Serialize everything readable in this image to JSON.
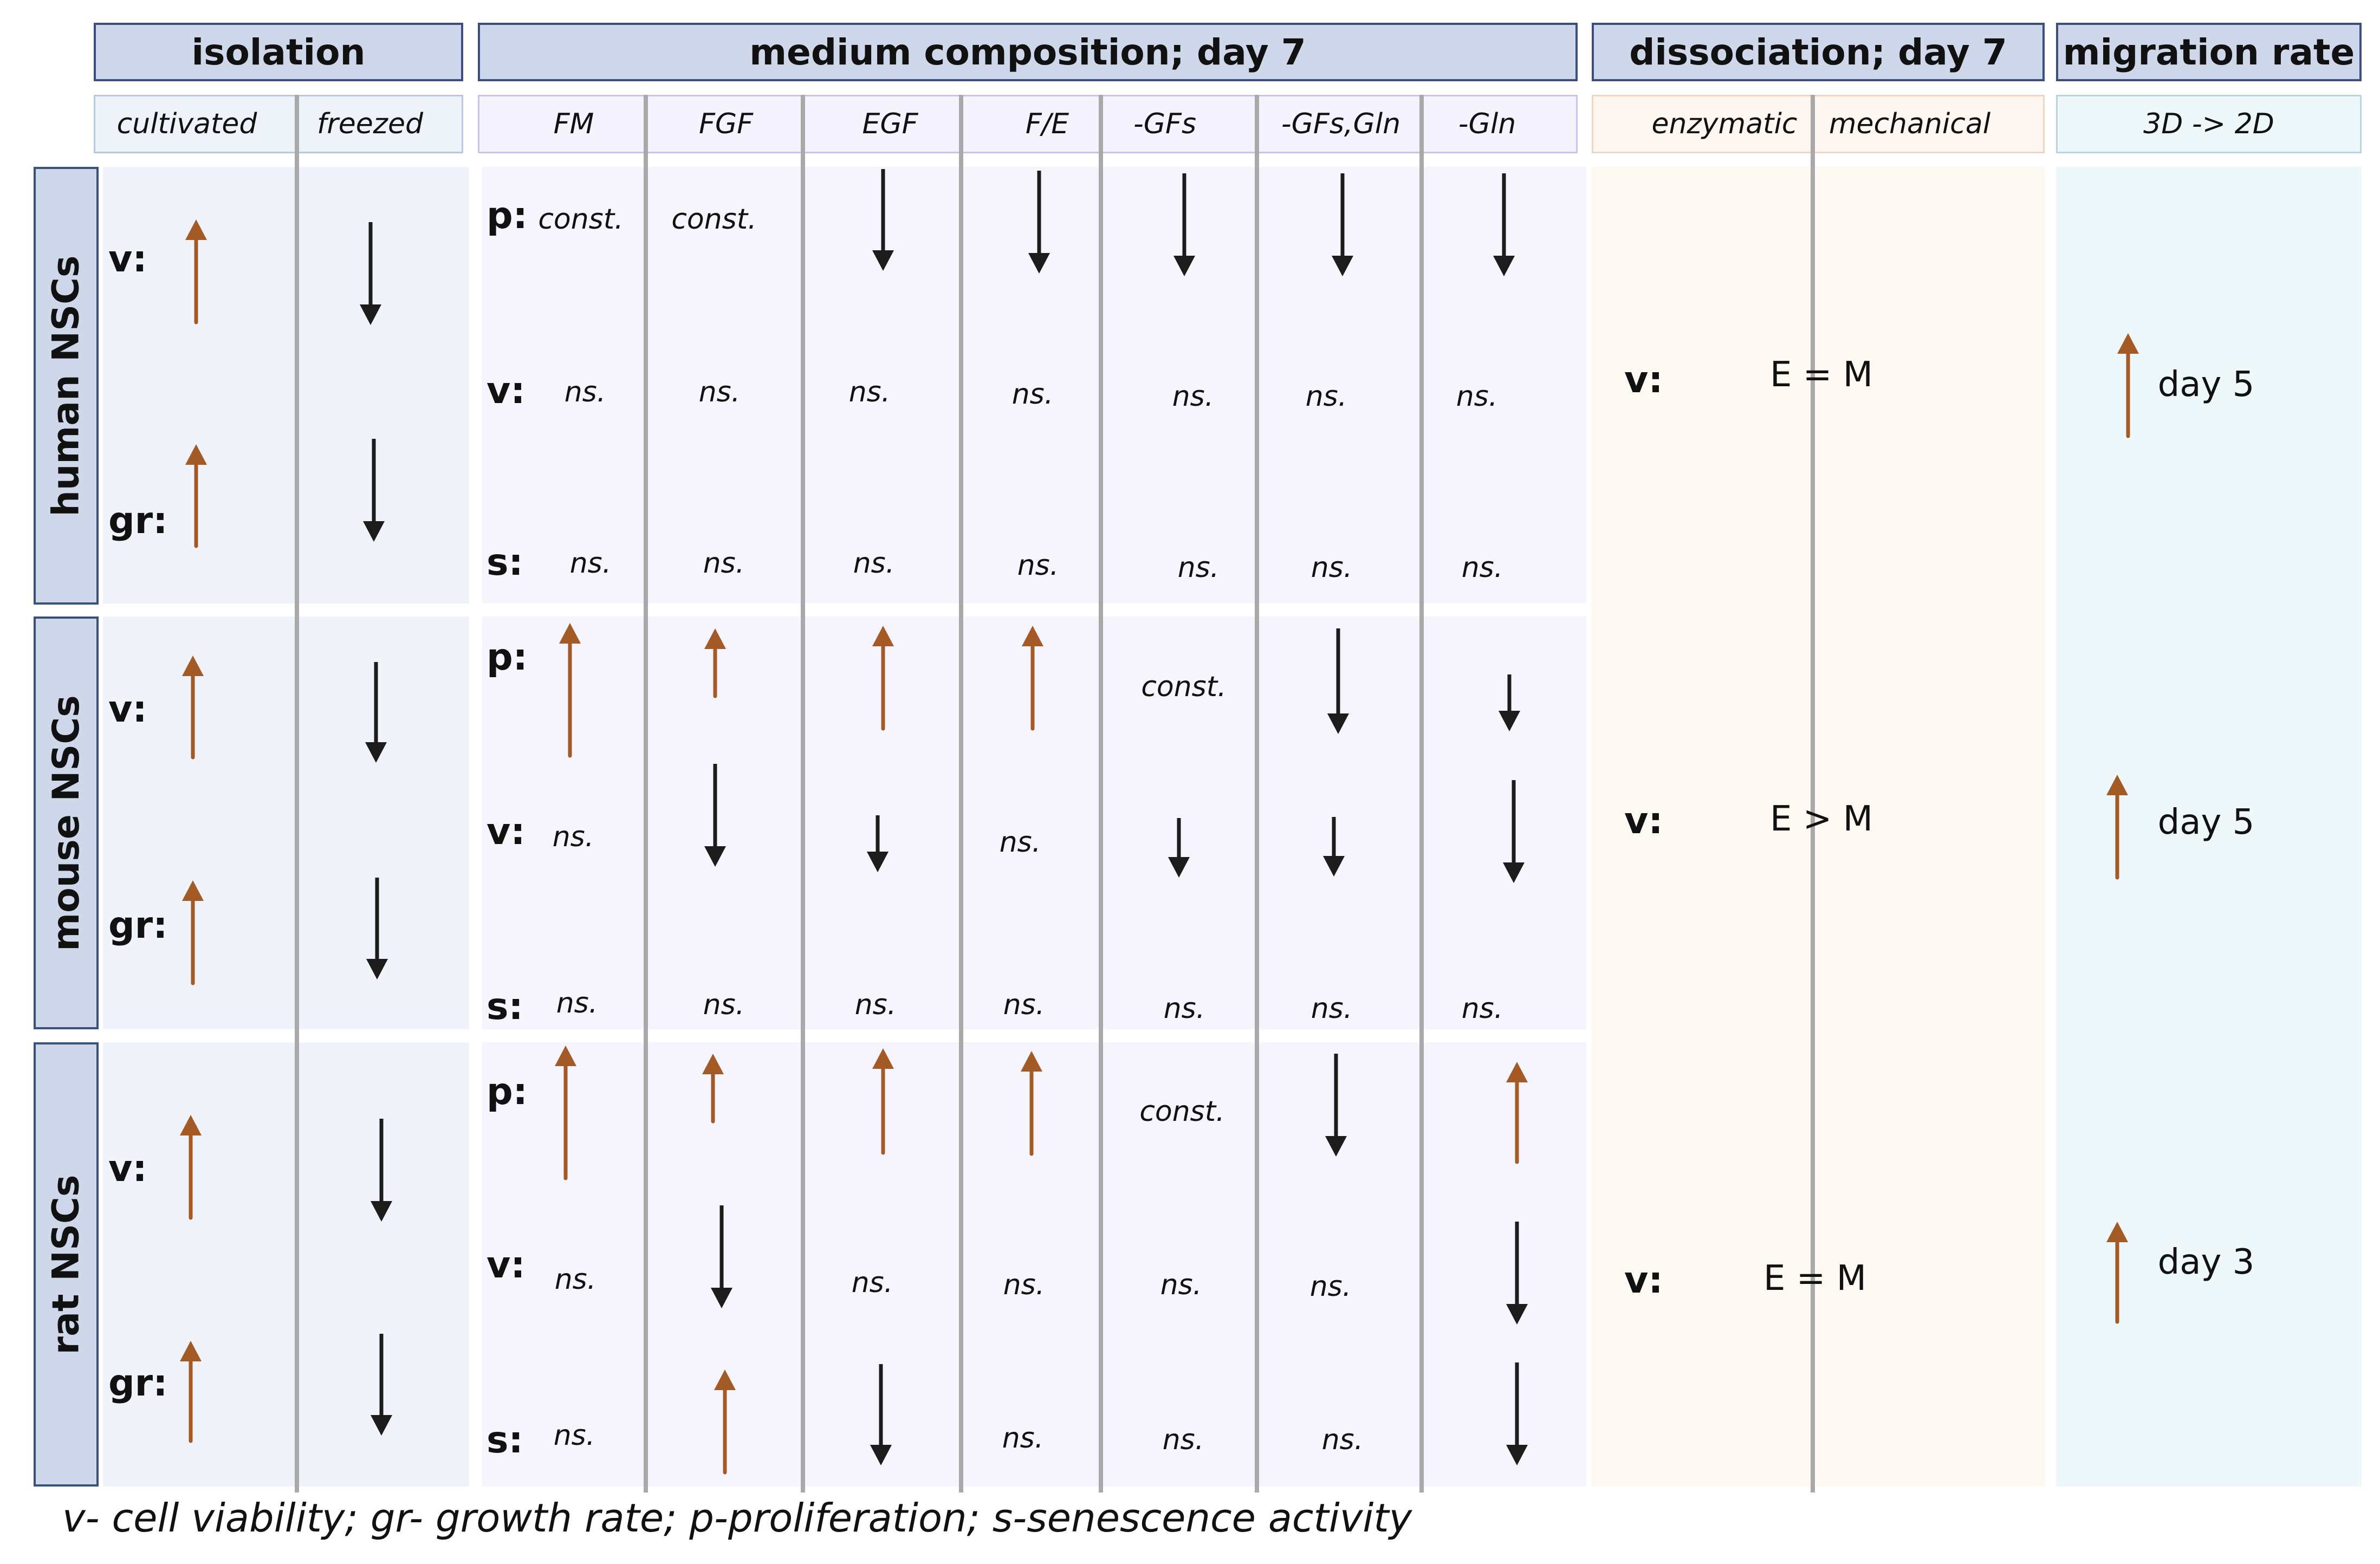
{
  "colors": {
    "up_arrow": "#a35a24",
    "down_arrow": "#1c1c1c",
    "header_fill": "#cfd8ea",
    "header_border": "#3a4f7a"
  },
  "headers": {
    "isolation": "isolation",
    "medium": "medium composition; day 7",
    "dissociation": "dissociation; day 7",
    "migration": "migration rate"
  },
  "subheaders": {
    "isolation": [
      "cultivated",
      "freezed"
    ],
    "medium": [
      "FM",
      "FGF",
      "EGF",
      "F/E",
      "-GFs",
      "-GFs,Gln",
      "-Gln"
    ],
    "dissociation": [
      "enzymatic",
      "mechanical"
    ],
    "migration": "3D -> 2D"
  },
  "species": [
    "human NSCs",
    "mouse NSCs",
    "rat NSCs"
  ],
  "row_labels": {
    "v": "v:",
    "gr": "gr:",
    "p": "p:",
    "s": "s:"
  },
  "values": {
    "const": "const.",
    "ns": "ns.",
    "human": {
      "dissociation": "E = M",
      "migration": "day 5"
    },
    "mouse": {
      "dissociation": "E > M",
      "migration": "day 5"
    },
    "rat": {
      "dissociation": "E = M",
      "migration": "day 3"
    }
  },
  "legend": "v- cell viability; gr- growth rate; p-proliferation; s-senescence activity"
}
